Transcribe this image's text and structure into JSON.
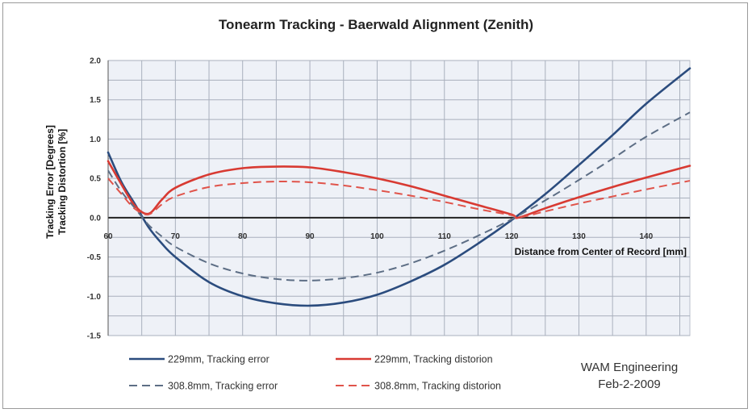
{
  "chart_data": {
    "type": "line",
    "title": "Tonearm Tracking - Baerwald Alignment (Zenith)",
    "xlabel": "Distance from Center of Record [mm]",
    "ylabel_line1": "Tracking Error [Degrees]",
    "ylabel_line2": "Tracking Distortion [%]",
    "xlim": [
      60,
      146.5
    ],
    "ylim": [
      -1.5,
      2.0
    ],
    "x_ticks": [
      60,
      70,
      80,
      90,
      100,
      110,
      120,
      130,
      140
    ],
    "x_tick_labels": [
      "60",
      "70",
      "80",
      "90",
      "100",
      "110",
      "120",
      "130",
      "140"
    ],
    "y_ticks": [
      -1.5,
      -1.0,
      -0.5,
      0.0,
      0.5,
      1.0,
      1.5,
      2.0
    ],
    "y_tick_labels": [
      "-1.5",
      "-1.0",
      "-0.5",
      "0.0",
      "0.5",
      "1.0",
      "1.5",
      "2.0"
    ],
    "grid": true,
    "legend_position": "bottom",
    "series": [
      {
        "name": "229mm, Tracking error",
        "color": "#2b4c7e",
        "style": "solid",
        "x": [
          60,
          62,
          64,
          66,
          68,
          70,
          75,
          80,
          85,
          90,
          95,
          100,
          105,
          110,
          115,
          120,
          125,
          130,
          135,
          140,
          146.5
        ],
        "y": [
          0.83,
          0.45,
          0.17,
          -0.12,
          -0.33,
          -0.5,
          -0.82,
          -1.0,
          -1.09,
          -1.12,
          -1.08,
          -0.98,
          -0.81,
          -0.6,
          -0.33,
          -0.03,
          0.3,
          0.67,
          1.05,
          1.45,
          1.9
        ]
      },
      {
        "name": "229mm, Tracking distorion",
        "color": "#d83a32",
        "style": "solid",
        "x": [
          60,
          62,
          64,
          66,
          68,
          70,
          75,
          80,
          85,
          90,
          95,
          100,
          105,
          110,
          115,
          120,
          121,
          125,
          130,
          135,
          140,
          146.5
        ],
        "y": [
          0.72,
          0.42,
          0.15,
          0.05,
          0.23,
          0.38,
          0.55,
          0.63,
          0.65,
          0.64,
          0.58,
          0.5,
          0.4,
          0.28,
          0.16,
          0.04,
          0.0,
          0.12,
          0.26,
          0.39,
          0.51,
          0.66
        ]
      },
      {
        "name": "308.8mm, Tracking error",
        "color": "#5d6e85",
        "style": "dashed",
        "x": [
          60,
          62,
          64,
          66,
          68,
          70,
          75,
          80,
          85,
          90,
          95,
          100,
          105,
          110,
          115,
          120,
          125,
          130,
          135,
          140,
          146.5
        ],
        "y": [
          0.6,
          0.33,
          0.12,
          -0.09,
          -0.24,
          -0.37,
          -0.58,
          -0.71,
          -0.78,
          -0.8,
          -0.77,
          -0.7,
          -0.58,
          -0.42,
          -0.23,
          -0.02,
          0.22,
          0.48,
          0.75,
          1.03,
          1.34
        ]
      },
      {
        "name": "308.8mm, Tracking distorion",
        "color": "#e0544b",
        "style": "dashed",
        "x": [
          60,
          62,
          64,
          66,
          68,
          70,
          75,
          80,
          85,
          90,
          95,
          100,
          105,
          110,
          115,
          120,
          121,
          125,
          130,
          135,
          140,
          146.5
        ],
        "y": [
          0.5,
          0.3,
          0.11,
          0.04,
          0.17,
          0.27,
          0.39,
          0.44,
          0.46,
          0.45,
          0.41,
          0.35,
          0.28,
          0.2,
          0.11,
          0.03,
          0.0,
          0.08,
          0.18,
          0.27,
          0.36,
          0.47
        ]
      }
    ],
    "annotations": [
      "WAM Engineering",
      "Feb-2-2009"
    ]
  }
}
